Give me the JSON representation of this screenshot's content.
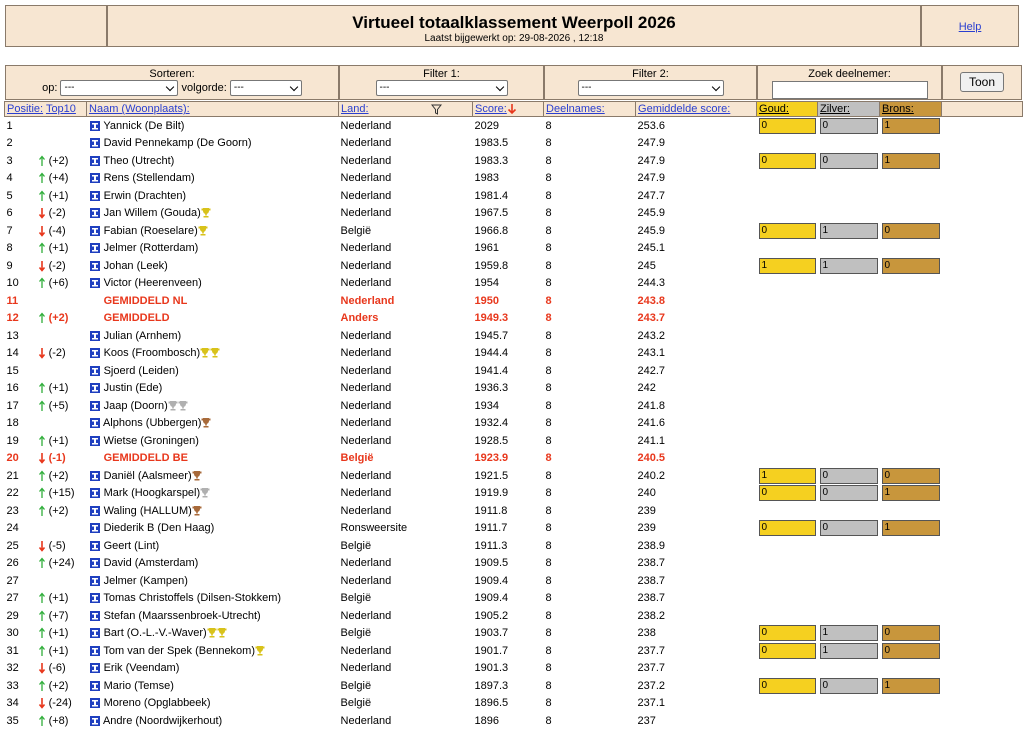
{
  "header": {
    "title": "Virtueel totaalklassement Weerpoll 2026",
    "updated": "Laatst bijgewerkt op: 29-08-2026 , 12:18",
    "help": "Help"
  },
  "controls": {
    "sort_label": "Sorteren:",
    "op_label": "op:",
    "op_value": "---",
    "order_label": "volgorde:",
    "order_value": "---",
    "filter1_label": "Filter 1:",
    "filter1_value": "---",
    "filter2_label": "Filter 2:",
    "filter2_value": "---",
    "search_label": "Zoek deelnemer:",
    "button": "Toon"
  },
  "columns": {
    "pos": "Positie:",
    "top10": "Top10",
    "name": "Naam (Woonplaats):",
    "land": "Land:",
    "score": "Score:",
    "deelnames": "Deelnames:",
    "avg": "Gemiddelde score:",
    "gold": "Goud:",
    "silver": "Zilver:",
    "bronze": "Brons:"
  },
  "rows": [
    {
      "pos": 1,
      "trend": null,
      "change": null,
      "name": "Yannick (De Bilt)",
      "trophies": [],
      "land": "Nederland",
      "score": 2029,
      "deelnames": 8,
      "avg": 253.6,
      "medals": [
        0,
        0,
        1
      ]
    },
    {
      "pos": 2,
      "trend": null,
      "change": null,
      "name": "David Pennekamp (De Goorn)",
      "trophies": [],
      "land": "Nederland",
      "score": 1983.5,
      "deelnames": 8,
      "avg": 247.9,
      "medals": null
    },
    {
      "pos": 3,
      "trend": "up",
      "change": "(+2)",
      "name": "Theo (Utrecht)",
      "trophies": [],
      "land": "Nederland",
      "score": 1983.3,
      "deelnames": 8,
      "avg": 247.9,
      "medals": [
        0,
        0,
        1
      ]
    },
    {
      "pos": 4,
      "trend": "up",
      "change": "(+4)",
      "name": "Rens (Stellendam)",
      "trophies": [],
      "land": "Nederland",
      "score": 1983,
      "deelnames": 8,
      "avg": 247.9,
      "medals": null
    },
    {
      "pos": 5,
      "trend": "up",
      "change": "(+1)",
      "name": "Erwin (Drachten)",
      "trophies": [],
      "land": "Nederland",
      "score": 1981.4,
      "deelnames": 8,
      "avg": 247.7,
      "medals": null
    },
    {
      "pos": 6,
      "trend": "down",
      "change": "(-2)",
      "name": "Jan Willem (Gouda)",
      "trophies": [
        "gold"
      ],
      "land": "Nederland",
      "score": 1967.5,
      "deelnames": 8,
      "avg": 245.9,
      "medals": null
    },
    {
      "pos": 7,
      "trend": "down",
      "change": "(-4)",
      "name": "Fabian (Roeselare)",
      "trophies": [
        "gold"
      ],
      "land": "België",
      "score": 1966.8,
      "deelnames": 8,
      "avg": 245.9,
      "medals": [
        0,
        1,
        0
      ]
    },
    {
      "pos": 8,
      "trend": "up",
      "change": "(+1)",
      "name": "Jelmer (Rotterdam)",
      "trophies": [],
      "land": "Nederland",
      "score": 1961,
      "deelnames": 8,
      "avg": 245.1,
      "medals": null
    },
    {
      "pos": 9,
      "trend": "down",
      "change": "(-2)",
      "name": "Johan (Leek)",
      "trophies": [],
      "land": "Nederland",
      "score": 1959.8,
      "deelnames": 8,
      "avg": 245,
      "medals": [
        1,
        1,
        0
      ]
    },
    {
      "pos": 10,
      "trend": "up",
      "change": "(+6)",
      "name": "Victor (Heerenveen)",
      "trophies": [],
      "land": "Nederland",
      "score": 1954,
      "deelnames": 8,
      "avg": 244.3,
      "medals": null
    },
    {
      "pos": 11,
      "trend": null,
      "change": null,
      "name": "GEMIDDELD NL",
      "highlight": true,
      "trophies": [],
      "land": "Nederland",
      "score": 1950,
      "deelnames": 8,
      "avg": 243.8,
      "medals": null
    },
    {
      "pos": 12,
      "trend": "up",
      "change": "(+2)",
      "name": "GEMIDDELD",
      "highlight": true,
      "trophies": [],
      "land": "Anders",
      "score": 1949.3,
      "deelnames": 8,
      "avg": 243.7,
      "medals": null
    },
    {
      "pos": 13,
      "trend": null,
      "change": null,
      "name": "Julian (Arnhem)",
      "trophies": [],
      "land": "Nederland",
      "score": 1945.7,
      "deelnames": 8,
      "avg": 243.2,
      "medals": null
    },
    {
      "pos": 14,
      "trend": "down",
      "change": "(-2)",
      "name": "Koos (Froombosch)",
      "trophies": [
        "gold",
        "gold"
      ],
      "land": "Nederland",
      "score": 1944.4,
      "deelnames": 8,
      "avg": 243.1,
      "medals": null
    },
    {
      "pos": 15,
      "trend": null,
      "change": null,
      "name": "Sjoerd (Leiden)",
      "trophies": [],
      "land": "Nederland",
      "score": 1941.4,
      "deelnames": 8,
      "avg": 242.7,
      "medals": null
    },
    {
      "pos": 16,
      "trend": "up",
      "change": "(+1)",
      "name": "Justin (Ede)",
      "trophies": [],
      "land": "Nederland",
      "score": 1936.3,
      "deelnames": 8,
      "avg": 242,
      "medals": null
    },
    {
      "pos": 17,
      "trend": "up",
      "change": "(+5)",
      "name": "Jaap (Doorn)",
      "trophies": [
        "silver",
        "silver"
      ],
      "land": "Nederland",
      "score": 1934,
      "deelnames": 8,
      "avg": 241.8,
      "medals": null
    },
    {
      "pos": 18,
      "trend": null,
      "change": null,
      "name": "Alphons (Ubbergen)",
      "trophies": [
        "bronze"
      ],
      "land": "Nederland",
      "score": 1932.4,
      "deelnames": 8,
      "avg": 241.6,
      "medals": null
    },
    {
      "pos": 19,
      "trend": "up",
      "change": "(+1)",
      "name": "Wietse (Groningen)",
      "trophies": [],
      "land": "Nederland",
      "score": 1928.5,
      "deelnames": 8,
      "avg": 241.1,
      "medals": null
    },
    {
      "pos": 20,
      "trend": "down",
      "change": "(-1)",
      "name": "GEMIDDELD BE",
      "highlight": true,
      "trophies": [],
      "land": "België",
      "score": 1923.9,
      "deelnames": 8,
      "avg": 240.5,
      "medals": null
    },
    {
      "pos": 21,
      "trend": "up",
      "change": "(+2)",
      "name": "Daniël (Aalsmeer)",
      "trophies": [
        "bronze"
      ],
      "land": "Nederland",
      "score": 1921.5,
      "deelnames": 8,
      "avg": 240.2,
      "medals": [
        1,
        0,
        0
      ]
    },
    {
      "pos": 22,
      "trend": "up",
      "change": "(+15)",
      "name": "Mark (Hoogkarspel)",
      "trophies": [
        "silver"
      ],
      "land": "Nederland",
      "score": 1919.9,
      "deelnames": 8,
      "avg": 240,
      "medals": [
        0,
        0,
        1
      ]
    },
    {
      "pos": 23,
      "trend": "up",
      "change": "(+2)",
      "name": "Waling (HALLUM)",
      "trophies": [
        "bronze"
      ],
      "land": "Nederland",
      "score": 1911.8,
      "deelnames": 8,
      "avg": 239,
      "medals": null
    },
    {
      "pos": 24,
      "trend": null,
      "change": null,
      "name": "Diederik B (Den Haag)",
      "trophies": [],
      "land": "Ronsweersite",
      "score": 1911.7,
      "deelnames": 8,
      "avg": 239,
      "medals": [
        0,
        0,
        1
      ]
    },
    {
      "pos": 25,
      "trend": "down",
      "change": "(-5)",
      "name": "Geert (Lint)",
      "trophies": [],
      "land": "België",
      "score": 1911.3,
      "deelnames": 8,
      "avg": 238.9,
      "medals": null
    },
    {
      "pos": 26,
      "trend": "up",
      "change": "(+24)",
      "name": "David (Amsterdam)",
      "trophies": [],
      "land": "Nederland",
      "score": 1909.5,
      "deelnames": 8,
      "avg": 238.7,
      "medals": null
    },
    {
      "pos": 27,
      "trend": null,
      "change": null,
      "name": "Jelmer (Kampen)",
      "trophies": [],
      "land": "Nederland",
      "score": 1909.4,
      "deelnames": 8,
      "avg": 238.7,
      "medals": null
    },
    {
      "pos": 27,
      "trend": "up",
      "change": "(+1)",
      "name": "Tomas Christoffels (Dilsen-Stokkem)",
      "trophies": [],
      "land": "België",
      "score": 1909.4,
      "deelnames": 8,
      "avg": 238.7,
      "medals": null
    },
    {
      "pos": 29,
      "trend": "up",
      "change": "(+7)",
      "name": "Stefan (Maarssenbroek-Utrecht)",
      "trophies": [],
      "land": "Nederland",
      "score": 1905.2,
      "deelnames": 8,
      "avg": 238.2,
      "medals": null
    },
    {
      "pos": 30,
      "trend": "up",
      "change": "(+1)",
      "name": "Bart (O.-L.-V.-Waver)",
      "trophies": [
        "gold",
        "gold"
      ],
      "land": "België",
      "score": 1903.7,
      "deelnames": 8,
      "avg": 238,
      "medals": [
        0,
        1,
        0
      ]
    },
    {
      "pos": 31,
      "trend": "up",
      "change": "(+1)",
      "name": "Tom van der Spek (Bennekom)",
      "trophies": [
        "gold"
      ],
      "land": "Nederland",
      "score": 1901.7,
      "deelnames": 8,
      "avg": 237.7,
      "medals": [
        0,
        1,
        0
      ]
    },
    {
      "pos": 32,
      "trend": "down",
      "change": "(-6)",
      "name": "Erik (Veendam)",
      "trophies": [],
      "land": "Nederland",
      "score": 1901.3,
      "deelnames": 8,
      "avg": 237.7,
      "medals": null
    },
    {
      "pos": 33,
      "trend": "up",
      "change": "(+2)",
      "name": "Mario (Temse)",
      "trophies": [],
      "land": "België",
      "score": 1897.3,
      "deelnames": 8,
      "avg": 237.2,
      "medals": [
        0,
        0,
        1
      ]
    },
    {
      "pos": 34,
      "trend": "down",
      "change": "(-24)",
      "name": "Moreno (Opglabbeek)",
      "trophies": [],
      "land": "België",
      "score": 1896.5,
      "deelnames": 8,
      "avg": 237.1,
      "medals": null
    },
    {
      "pos": 35,
      "trend": "up",
      "change": "(+8)",
      "name": "Andre (Noordwijkerhout)",
      "trophies": [],
      "land": "Nederland",
      "score": 1896,
      "deelnames": 8,
      "avg": 237,
      "medals": null
    }
  ]
}
